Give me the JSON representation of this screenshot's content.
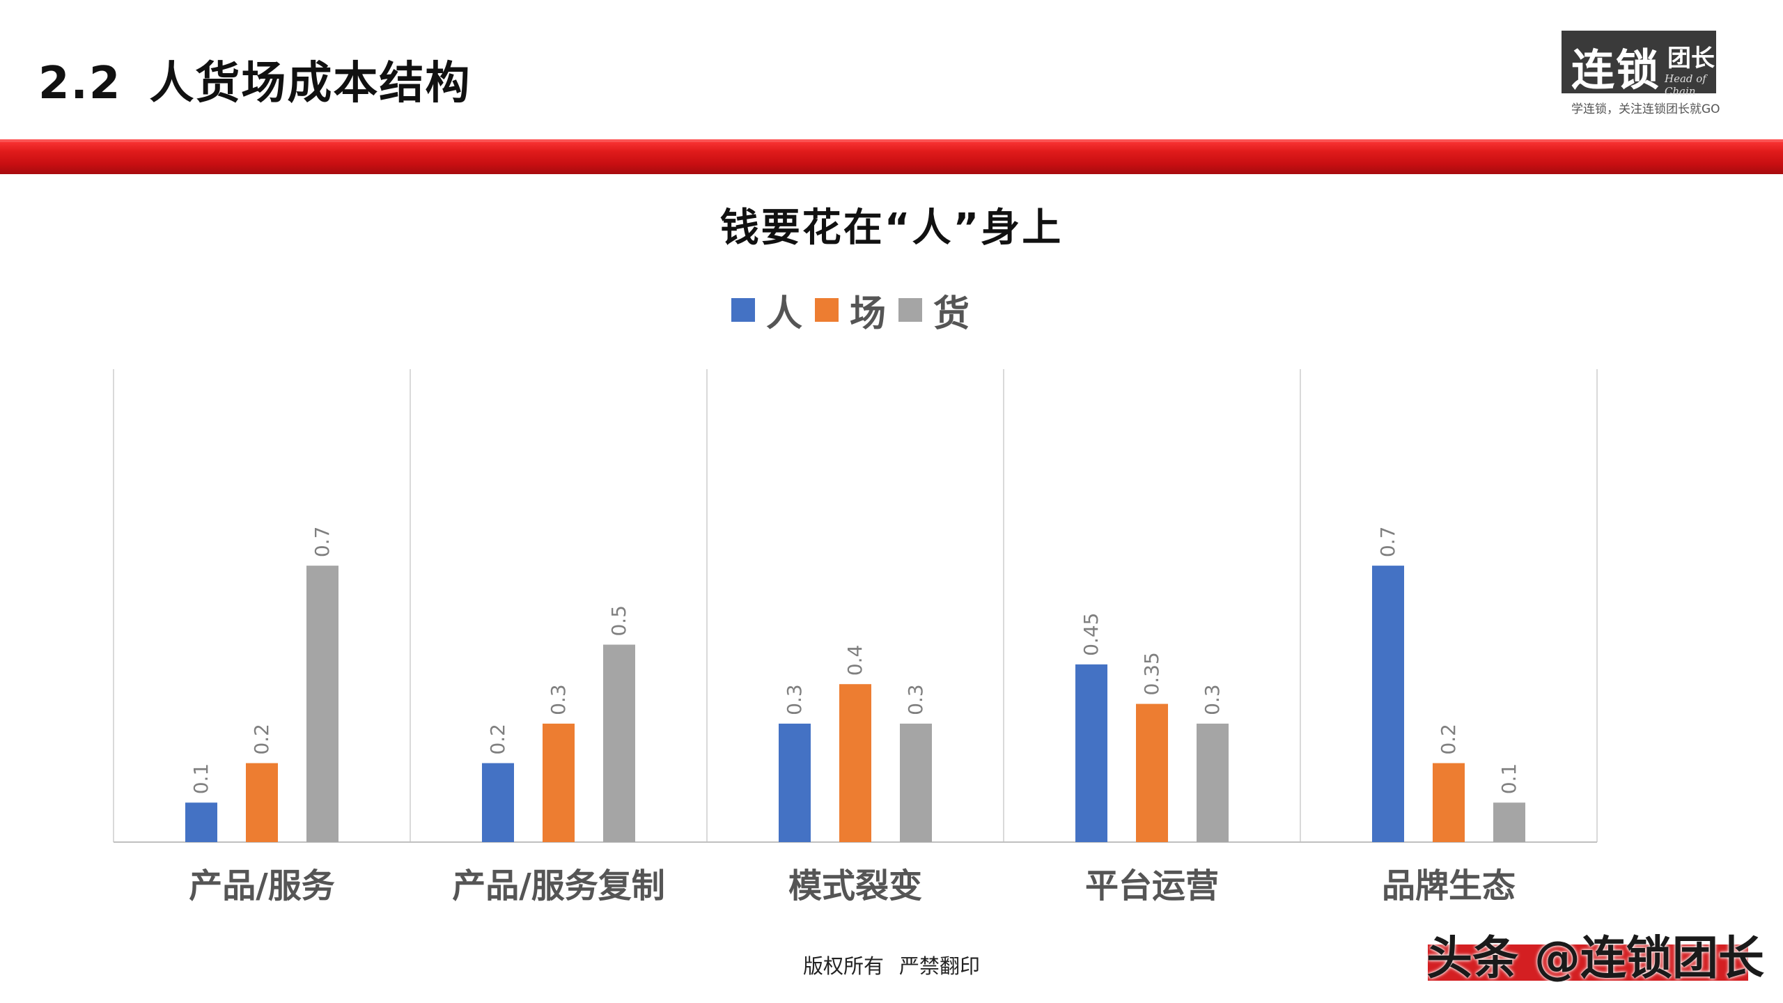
{
  "header": {
    "section_number": "2.2",
    "title": "人货场成本结构"
  },
  "logo": {
    "text_big": "连锁",
    "text_small": "团长",
    "script": "Head of Chain",
    "slogan": "学连锁，关注连锁团长就GO"
  },
  "footer": {
    "copyright": "版权所有",
    "notice": "严禁翻印"
  },
  "watermark": {
    "text": "头条 @连锁团长"
  },
  "colors": {
    "band": "#d41f22",
    "person": "#4472c4",
    "place": "#ed7d31",
    "goods": "#a5a5a5"
  },
  "chart_data": {
    "type": "bar",
    "title": "钱要花在“人”身上",
    "categories": [
      "产品/服务",
      "产品/服务复制",
      "模式裂变",
      "平台运营",
      "品牌生态"
    ],
    "series": [
      {
        "name": "人",
        "color": "#4472c4",
        "values": [
          0.1,
          0.2,
          0.3,
          0.45,
          0.7
        ]
      },
      {
        "name": "场",
        "color": "#ed7d31",
        "values": [
          0.2,
          0.3,
          0.4,
          0.35,
          0.2
        ]
      },
      {
        "name": "货",
        "color": "#a5a5a5",
        "values": [
          0.7,
          0.5,
          0.3,
          0.3,
          0.1
        ]
      }
    ],
    "ylim": [
      0,
      1
    ],
    "legend_position": "top-center",
    "data_labels": true,
    "gridlines": "vertical-category-separators"
  }
}
